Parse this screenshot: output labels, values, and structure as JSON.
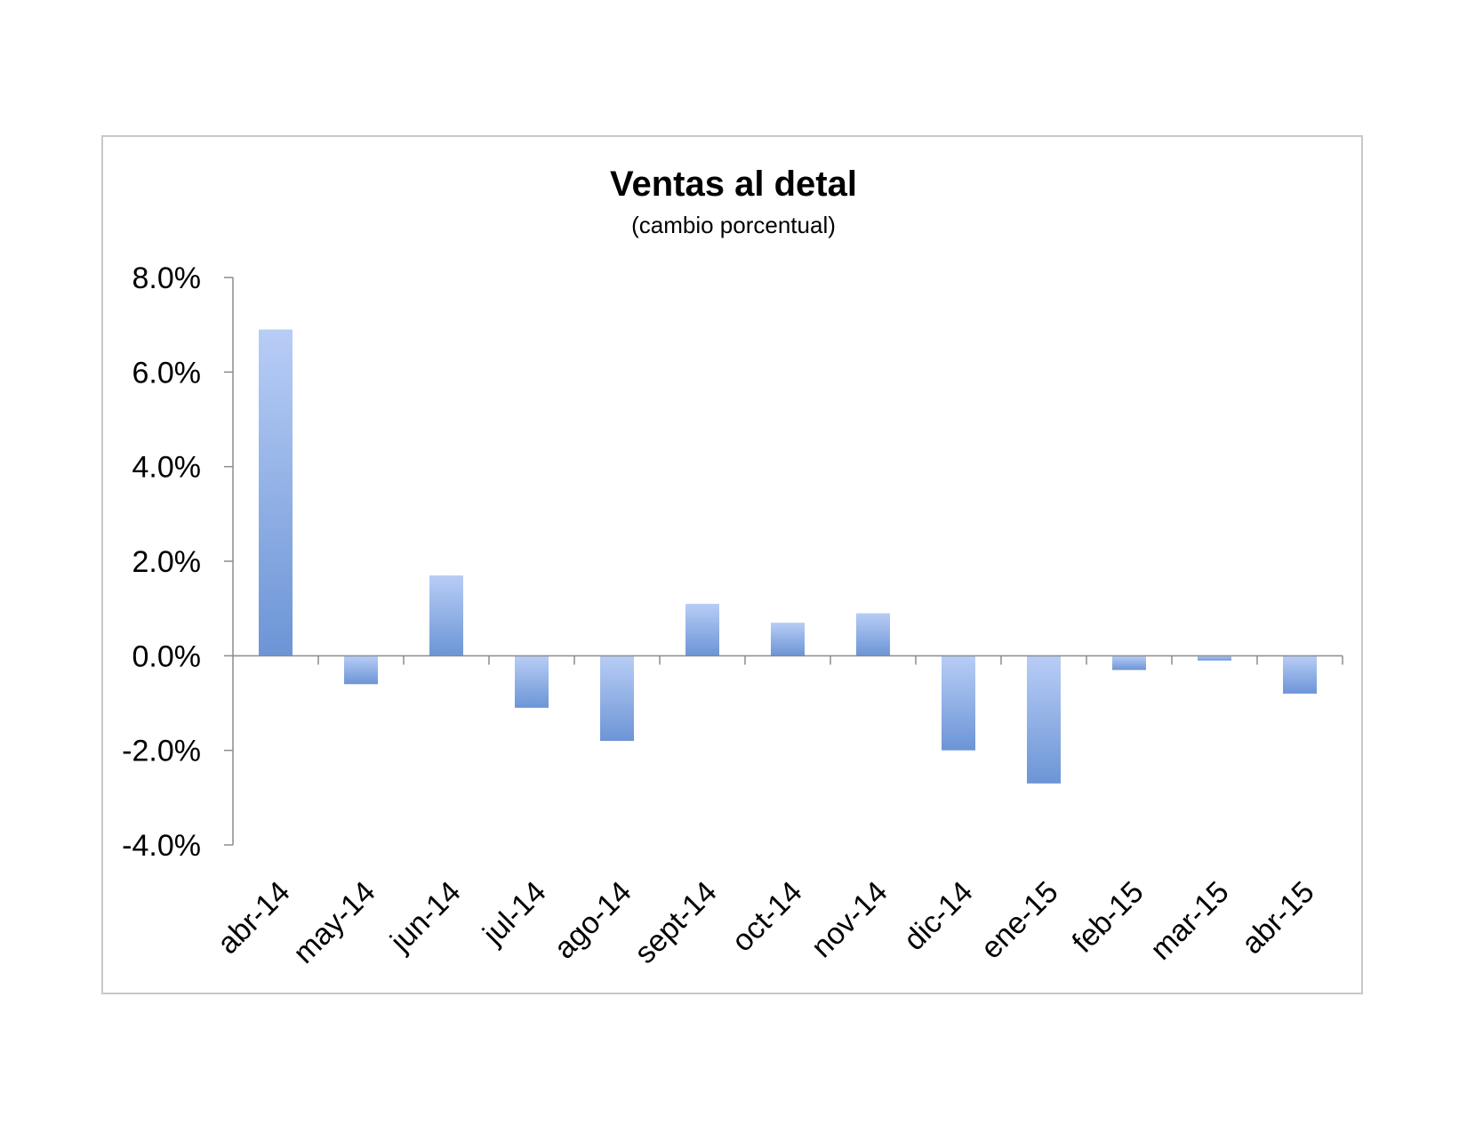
{
  "chart_data": {
    "type": "bar",
    "title": "Ventas al detal",
    "subtitle": "(cambio porcentual)",
    "categories": [
      "abr-14",
      "may-14",
      "jun-14",
      "jul-14",
      "ago-14",
      "sept-14",
      "oct-14",
      "nov-14",
      "dic-14",
      "ene-15",
      "feb-15",
      "mar-15",
      "abr-15"
    ],
    "values": [
      6.9,
      -0.6,
      1.7,
      -1.1,
      -1.8,
      1.1,
      0.7,
      0.9,
      -2.0,
      -2.7,
      -0.3,
      -0.1,
      -0.8
    ],
    "ylim": [
      -4.0,
      8.0
    ],
    "yticks": [
      "8.0%",
      "6.0%",
      "4.0%",
      "2.0%",
      "0.0%",
      "-2.0%",
      "-4.0%"
    ],
    "ytick_values": [
      8,
      6,
      4,
      2,
      0,
      -2,
      -4
    ],
    "grid": false,
    "legend": "none",
    "colors": {
      "bar_light": "#b8cdf6",
      "bar_dark": "#6c95d6",
      "axis": "#8c8c8c"
    }
  }
}
